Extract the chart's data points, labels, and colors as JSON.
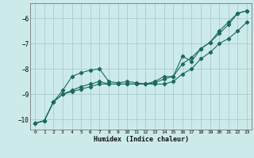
{
  "xlabel": "Humidex (Indice chaleur)",
  "bg_color": "#cdeaea",
  "grid_color": "#aacccc",
  "line_color": "#1a6b5a",
  "xlim": [
    -0.5,
    23.5
  ],
  "ylim": [
    -10.4,
    -5.4
  ],
  "yticks": [
    -10,
    -9,
    -8,
    -7,
    -6
  ],
  "xticks": [
    0,
    1,
    2,
    3,
    4,
    5,
    6,
    7,
    8,
    9,
    10,
    11,
    12,
    13,
    14,
    15,
    16,
    17,
    18,
    19,
    20,
    21,
    22,
    23
  ],
  "line1_x": [
    0,
    1,
    2,
    3,
    4,
    5,
    6,
    7,
    8,
    9,
    10,
    11,
    12,
    13,
    14,
    15,
    16,
    17,
    18,
    19,
    20,
    21,
    22,
    23
  ],
  "line1_y": [
    -10.15,
    -10.05,
    -9.3,
    -8.85,
    -8.3,
    -8.15,
    -8.05,
    -8.0,
    -8.5,
    -8.55,
    -8.5,
    -8.55,
    -8.6,
    -8.5,
    -8.3,
    -8.3,
    -7.5,
    -7.7,
    -7.2,
    -6.95,
    -6.6,
    -6.25,
    -5.8,
    -5.7
  ],
  "line2_x": [
    0,
    1,
    2,
    3,
    4,
    5,
    6,
    7,
    8,
    9,
    10,
    11,
    12,
    13,
    14,
    15,
    16,
    17,
    18,
    19,
    20,
    21,
    22,
    23
  ],
  "line2_y": [
    -10.15,
    -10.05,
    -9.3,
    -9.0,
    -8.9,
    -8.8,
    -8.7,
    -8.6,
    -8.6,
    -8.6,
    -8.6,
    -8.6,
    -8.6,
    -8.6,
    -8.6,
    -8.5,
    -8.2,
    -8.0,
    -7.6,
    -7.35,
    -7.0,
    -6.8,
    -6.5,
    -6.15
  ],
  "line3_x": [
    0,
    1,
    2,
    3,
    4,
    5,
    6,
    7,
    8,
    9,
    10,
    11,
    12,
    13,
    14,
    15,
    16,
    17,
    18,
    19,
    20,
    21,
    22,
    23
  ],
  "line3_y": [
    -10.15,
    -10.05,
    -9.3,
    -9.0,
    -8.85,
    -8.7,
    -8.6,
    -8.5,
    -8.6,
    -8.6,
    -8.6,
    -8.6,
    -8.6,
    -8.55,
    -8.4,
    -8.3,
    -7.8,
    -7.55,
    -7.2,
    -6.95,
    -6.5,
    -6.15,
    -5.8,
    -5.7
  ]
}
